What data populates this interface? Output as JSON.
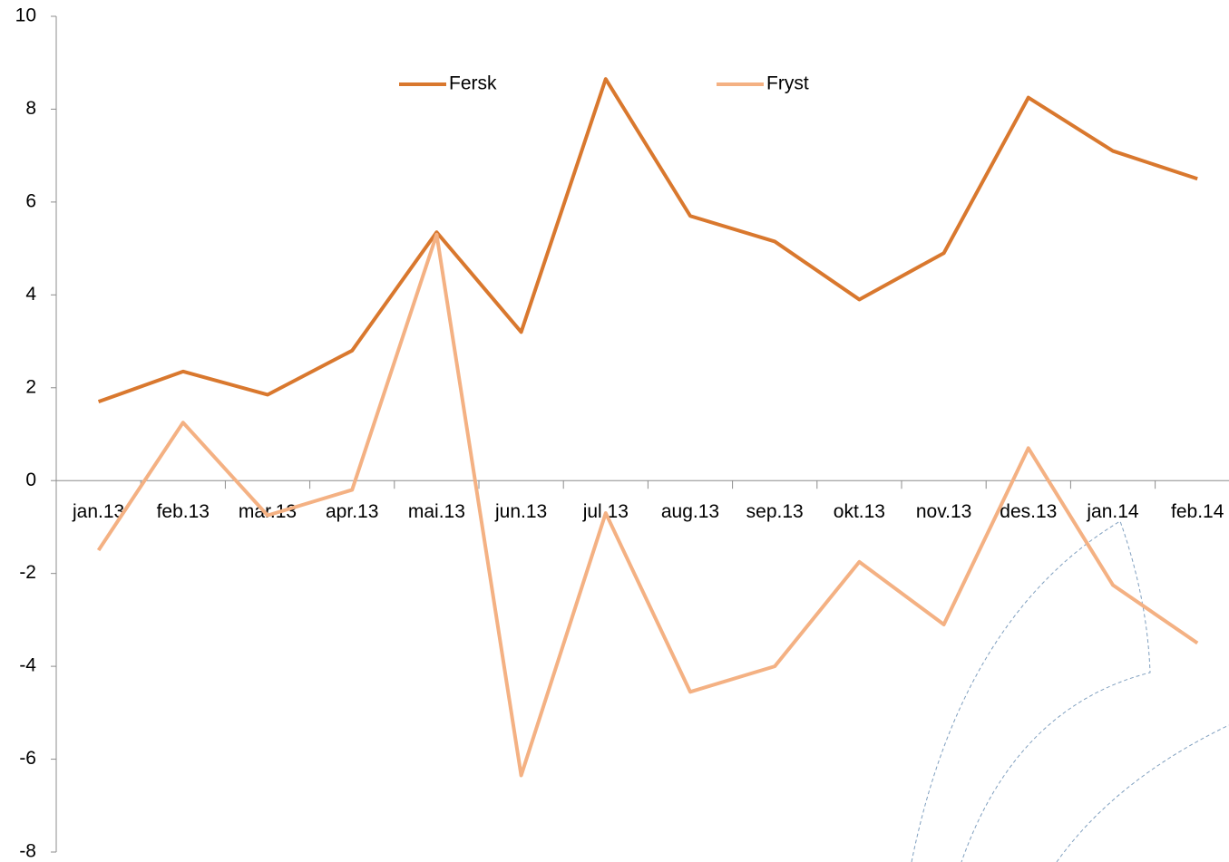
{
  "chart_data": {
    "type": "line",
    "categories": [
      "jan.13",
      "feb.13",
      "mar.13",
      "apr.13",
      "mai.13",
      "jun.13",
      "jul.13",
      "aug.13",
      "sep.13",
      "okt.13",
      "nov.13",
      "des.13",
      "jan.14",
      "feb.14"
    ],
    "series": [
      {
        "name": "Fersk",
        "color": "#d9782e",
        "values": [
          1.7,
          2.35,
          1.85,
          2.8,
          5.35,
          3.2,
          8.65,
          5.7,
          5.15,
          3.9,
          4.9,
          8.25,
          7.1,
          6.5
        ]
      },
      {
        "name": "Fryst",
        "color": "#f4b183",
        "values": [
          -1.5,
          1.25,
          -0.75,
          -0.2,
          5.3,
          -6.35,
          -0.7,
          -4.55,
          -4.0,
          -1.75,
          -3.1,
          0.7,
          -2.25,
          -3.5
        ]
      }
    ],
    "ylim": [
      -8,
      10
    ],
    "yticks": [
      -8,
      -6,
      -4,
      -2,
      0,
      2,
      4,
      6,
      8,
      10
    ]
  }
}
